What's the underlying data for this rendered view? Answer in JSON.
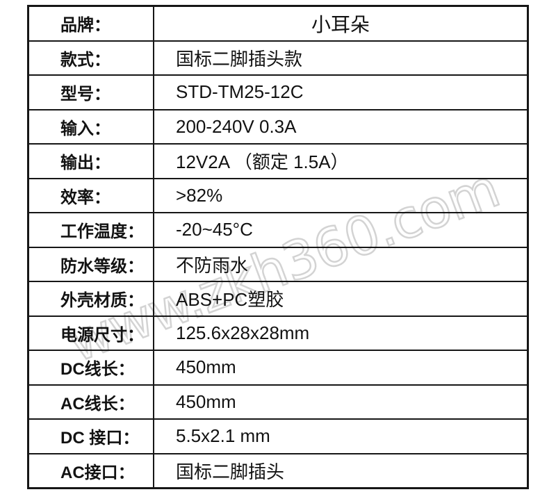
{
  "watermark": {
    "text": "www.zkh360.com",
    "color": "#d3d3d3"
  },
  "colors": {
    "table_border": "#161616",
    "text": "#121212",
    "background": "#ffffff"
  },
  "table": {
    "rows": [
      {
        "label": "品牌：",
        "value": "小耳朵"
      },
      {
        "label": "款式：",
        "value": "国标二脚插头款"
      },
      {
        "label": "型号：",
        "value": "STD-TM25-12C"
      },
      {
        "label": "输入：",
        "value": "200-240V 0.3A"
      },
      {
        "label": "输出：",
        "value": "12V2A （额定 1.5A）"
      },
      {
        "label": "效率：",
        "value": ">82%"
      },
      {
        "label": "工作温度：",
        "value": "-20~45°C"
      },
      {
        "label": "防水等级：",
        "value": "不防雨水"
      },
      {
        "label": "外壳材质：",
        "value": "ABS+PC塑胶"
      },
      {
        "label": "电源尺寸：",
        "value": "125.6x28x28mm"
      },
      {
        "label": "DC线长：",
        "value": "450mm"
      },
      {
        "label": "AC线长：",
        "value": "450mm"
      },
      {
        "label": "DC 接口：",
        "value": "5.5x2.1 mm"
      },
      {
        "label": "AC接口：",
        "value": "国标二脚插头"
      }
    ]
  }
}
